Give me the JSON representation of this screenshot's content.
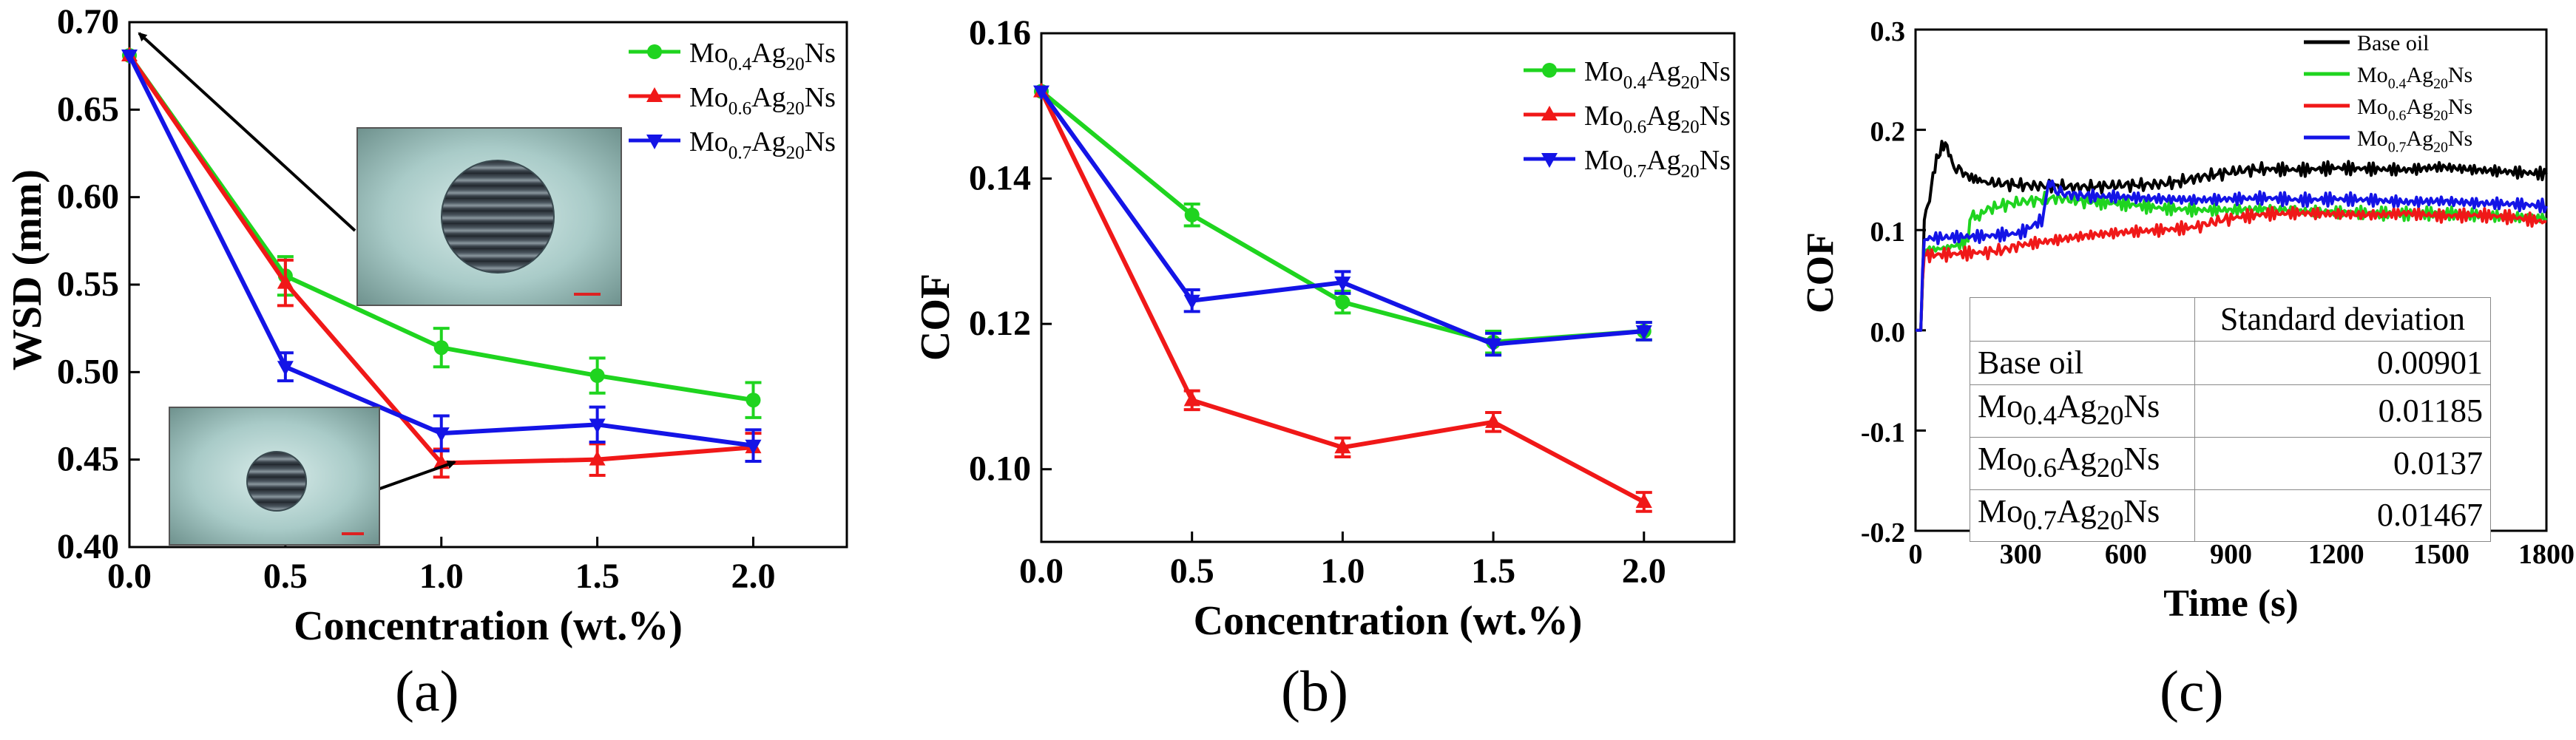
{
  "colors": {
    "green": "#1fd41f",
    "red": "#f01818",
    "blue": "#1414e6",
    "black": "#000000"
  },
  "panel_labels": [
    "(a)",
    "(b)",
    "(c)"
  ],
  "inset_images": [
    "wear-scar-base-oil",
    "wear-scar-1wt"
  ],
  "chart_data": [
    {
      "id": "a",
      "type": "line",
      "xlabel": "Concentration (wt.%)",
      "ylabel": "WSD (mm)",
      "xlim": [
        0,
        2.3
      ],
      "ylim": [
        0.4,
        0.7
      ],
      "xticks": [
        0.0,
        0.5,
        1.0,
        1.5,
        2.0
      ],
      "xtick_labels": [
        "0.0",
        "0.5",
        "1.0",
        "1.5",
        "2.0"
      ],
      "yticks": [
        0.4,
        0.45,
        0.5,
        0.55,
        0.6,
        0.65,
        0.7
      ],
      "ytick_labels": [
        "0.40",
        "0.45",
        "0.50",
        "0.55",
        "0.60",
        "0.65",
        "0.70"
      ],
      "x": [
        0.0,
        0.5,
        1.0,
        1.5,
        2.0
      ],
      "series": [
        {
          "name": "Mo0.4Ag20Ns",
          "sub1": "0.4",
          "sub2": "20",
          "color": "green",
          "marker": "circle",
          "values": [
            0.681,
            0.555,
            0.514,
            0.498,
            0.484
          ],
          "errors": [
            0,
            0.011,
            0.011,
            0.01,
            0.01
          ]
        },
        {
          "name": "Mo0.6Ag20Ns",
          "sub1": "0.6",
          "sub2": "20",
          "color": "red",
          "marker": "triangle-up",
          "values": [
            0.681,
            0.551,
            0.448,
            0.45,
            0.457
          ],
          "errors": [
            0,
            0.013,
            0.008,
            0.009,
            0.008
          ]
        },
        {
          "name": "Mo0.7Ag20Ns",
          "sub1": "0.7",
          "sub2": "20",
          "color": "blue",
          "marker": "triangle-down",
          "values": [
            0.681,
            0.503,
            0.465,
            0.47,
            0.458
          ],
          "errors": [
            0,
            0.008,
            0.01,
            0.01,
            0.009
          ]
        }
      ]
    },
    {
      "id": "b",
      "type": "line",
      "xlabel": "Concentration (wt.%)",
      "ylabel": "COF",
      "xlim": [
        0,
        2.3
      ],
      "ylim": [
        0.09,
        0.16
      ],
      "xticks": [
        0.0,
        0.5,
        1.0,
        1.5,
        2.0
      ],
      "xtick_labels": [
        "0.0",
        "0.5",
        "1.0",
        "1.5",
        "2.0"
      ],
      "yticks": [
        0.1,
        0.12,
        0.14,
        0.16
      ],
      "ytick_labels": [
        "0.10",
        "0.12",
        "0.14",
        "0.16"
      ],
      "x": [
        0.0,
        0.5,
        1.0,
        1.5,
        2.0
      ],
      "series": [
        {
          "name": "Mo0.4Ag20Ns",
          "sub1": "0.4",
          "sub2": "20",
          "color": "green",
          "marker": "circle",
          "values": [
            0.152,
            0.135,
            0.123,
            0.1175,
            0.119
          ],
          "errors": [
            0,
            0.0015,
            0.0015,
            0.0015,
            0.0012
          ]
        },
        {
          "name": "Mo0.6Ag20Ns",
          "sub1": "0.6",
          "sub2": "20",
          "color": "red",
          "marker": "triangle-up",
          "values": [
            0.152,
            0.1095,
            0.103,
            0.1065,
            0.0955
          ],
          "errors": [
            0,
            0.0013,
            0.0013,
            0.0013,
            0.0013
          ]
        },
        {
          "name": "Mo0.7Ag20Ns",
          "sub1": "0.7",
          "sub2": "20",
          "color": "blue",
          "marker": "triangle-down",
          "values": [
            0.152,
            0.1232,
            0.1257,
            0.1172,
            0.119
          ],
          "errors": [
            0,
            0.0015,
            0.0015,
            0.0015,
            0.0012
          ]
        }
      ]
    },
    {
      "id": "c",
      "type": "line",
      "xlabel": "Time (s)",
      "ylabel": "COF",
      "xlim": [
        0,
        1800
      ],
      "ylim": [
        -0.2,
        0.3
      ],
      "xticks": [
        0,
        300,
        600,
        900,
        1200,
        1500,
        1800
      ],
      "xtick_labels": [
        "0",
        "300",
        "600",
        "900",
        "1200",
        "1500",
        "1800"
      ],
      "yticks": [
        -0.2,
        -0.1,
        0.0,
        0.1,
        0.2,
        0.3
      ],
      "ytick_labels": [
        "-0.2",
        "-0.1",
        "0.0",
        "0.1",
        "0.2",
        "0.3"
      ],
      "series": [
        {
          "name": "Base oil",
          "color": "black",
          "x": [
            0,
            15,
            20,
            25,
            30,
            40,
            50,
            60,
            70,
            80,
            90,
            100,
            110,
            130,
            160,
            200,
            250,
            300,
            350,
            400,
            450,
            500,
            550,
            600,
            650,
            700,
            750,
            800,
            850,
            900,
            950,
            1000,
            1100,
            1200,
            1300,
            1400,
            1500,
            1600,
            1700,
            1800
          ],
          "y": [
            0,
            0,
            0.05,
            0.11,
            0.12,
            0.13,
            0.155,
            0.17,
            0.178,
            0.186,
            0.183,
            0.172,
            0.163,
            0.158,
            0.152,
            0.148,
            0.146,
            0.145,
            0.144,
            0.144,
            0.143,
            0.143,
            0.144,
            0.145,
            0.145,
            0.146,
            0.148,
            0.152,
            0.155,
            0.158,
            0.16,
            0.161,
            0.16,
            0.162,
            0.161,
            0.16,
            0.163,
            0.16,
            0.158,
            0.156
          ]
        },
        {
          "name": "Mo0.4Ag20Ns",
          "sub1": "0.4",
          "sub2": "20",
          "color": "green",
          "x": [
            0,
            15,
            20,
            25,
            40,
            80,
            120,
            150,
            160,
            170,
            200,
            250,
            300,
            350,
            400,
            450,
            500,
            600,
            700,
            800,
            900,
            1000,
            1100,
            1200,
            1300,
            1400,
            1500,
            1600,
            1700,
            1800
          ],
          "y": [
            0,
            0,
            0.05,
            0.08,
            0.08,
            0.082,
            0.085,
            0.09,
            0.12,
            0.11,
            0.12,
            0.125,
            0.128,
            0.13,
            0.132,
            0.13,
            0.128,
            0.126,
            0.122,
            0.12,
            0.12,
            0.121,
            0.119,
            0.118,
            0.117,
            0.116,
            0.117,
            0.115,
            0.113,
            0.112
          ]
        },
        {
          "name": "Mo0.6Ag20Ns",
          "sub1": "0.6",
          "sub2": "20",
          "color": "red",
          "x": [
            0,
            15,
            20,
            25,
            40,
            100,
            200,
            250,
            300,
            400,
            500,
            600,
            700,
            800,
            850,
            900,
            1000,
            1100,
            1200,
            1300,
            1400,
            1500,
            1600,
            1700,
            1800
          ],
          "y": [
            0,
            0,
            0.05,
            0.075,
            0.075,
            0.076,
            0.078,
            0.08,
            0.085,
            0.09,
            0.095,
            0.098,
            0.1,
            0.103,
            0.108,
            0.112,
            0.116,
            0.117,
            0.116,
            0.115,
            0.117,
            0.114,
            0.115,
            0.113,
            0.108
          ]
        },
        {
          "name": "Mo0.7Ag20Ns",
          "sub1": "0.7",
          "sub2": "20",
          "color": "blue",
          "x": [
            0,
            15,
            20,
            25,
            40,
            100,
            200,
            300,
            360,
            380,
            390,
            400,
            420,
            500,
            600,
            700,
            800,
            900,
            1000,
            1100,
            1200,
            1300,
            1400,
            1500,
            1600,
            1700,
            1800
          ],
          "y": [
            0,
            0,
            0.06,
            0.09,
            0.092,
            0.093,
            0.094,
            0.097,
            0.11,
            0.145,
            0.148,
            0.138,
            0.136,
            0.134,
            0.133,
            0.131,
            0.13,
            0.131,
            0.132,
            0.13,
            0.131,
            0.13,
            0.128,
            0.129,
            0.127,
            0.126,
            0.124
          ]
        }
      ],
      "table": {
        "header": [
          "",
          "Standard deviation"
        ],
        "rows": [
          {
            "name": "Base oil",
            "value": "0.00901"
          },
          {
            "name": "Mo0.4Ag20Ns",
            "sub1": "0.4",
            "sub2": "20",
            "value": "0.01185"
          },
          {
            "name": "Mo0.6Ag20Ns",
            "sub1": "0.6",
            "sub2": "20",
            "value": "0.0137"
          },
          {
            "name": "Mo0.7Ag20Ns",
            "sub1": "0.7",
            "sub2": "20",
            "value": "0.01467"
          }
        ]
      }
    }
  ]
}
